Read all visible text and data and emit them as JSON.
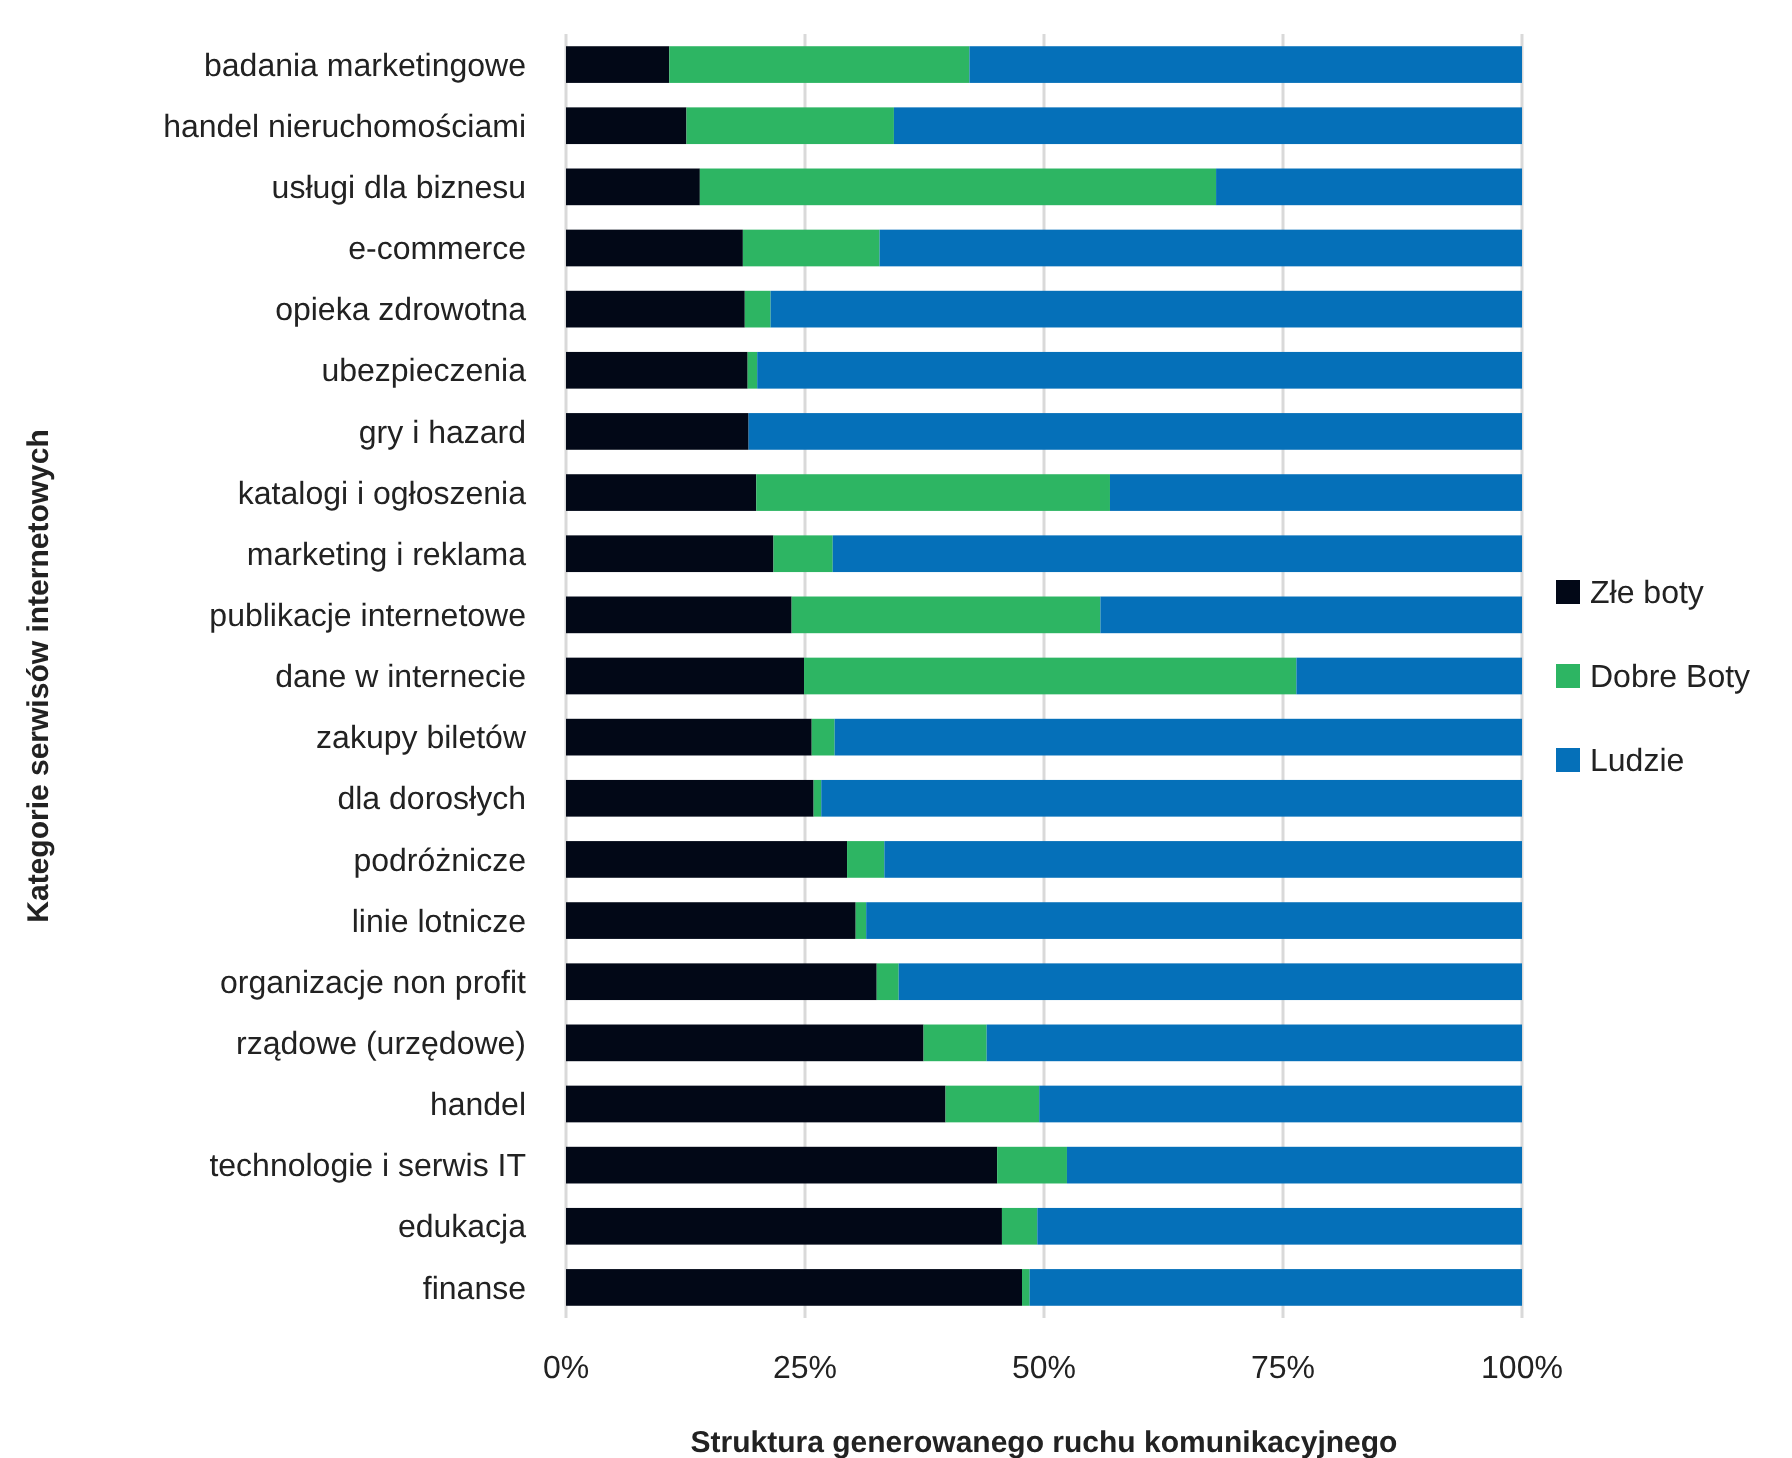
{
  "chart_data": {
    "type": "bar",
    "orientation": "horizontal",
    "stacked": true,
    "xlabel": "Struktura generowanego ruchu komunikacyjnego",
    "ylabel": "Kategorie serwisów internetowych",
    "categories": [
      "badania marketingowe",
      "handel nieruchomościami",
      "usługi dla biznesu",
      "e-commerce",
      "opieka zdrowotna",
      "ubezpieczenia",
      "gry i hazard",
      "katalogi i ogłoszenia",
      "marketing i reklama",
      "publikacje internetowe",
      "dane w internecie",
      "zakupy biletów",
      "dla dorosłych",
      "podróżnicze",
      "linie lotnicze",
      "organizacje non profit",
      "rządowe (urzędowe)",
      "handel",
      "technologie i serwis IT",
      "edukacja",
      "finanse"
    ],
    "series": [
      {
        "name": "Złe boty",
        "color": "#020817",
        "values": [
          10.8,
          12.6,
          14.0,
          18.5,
          18.7,
          19.0,
          19.1,
          19.9,
          21.7,
          23.6,
          24.9,
          25.7,
          25.9,
          29.4,
          30.3,
          32.5,
          37.4,
          39.7,
          45.1,
          45.6,
          47.7
        ]
      },
      {
        "name": "Dobre Boty",
        "color": "#2db563",
        "values": [
          31.4,
          21.7,
          54.0,
          14.3,
          2.7,
          1.0,
          0,
          37.0,
          6.2,
          32.3,
          51.5,
          2.4,
          0.8,
          3.9,
          1.1,
          2.3,
          6.6,
          9.8,
          7.3,
          3.7,
          0.8
        ]
      },
      {
        "name": "Ludzie",
        "color": "#0570b9",
        "values": [
          57.8,
          65.7,
          32.0,
          67.2,
          78.6,
          80.0,
          80.9,
          43.1,
          72.1,
          44.1,
          23.6,
          71.9,
          73.3,
          66.7,
          68.6,
          65.2,
          56.0,
          50.5,
          47.6,
          50.7,
          51.5
        ]
      }
    ],
    "xlim": [
      0,
      100
    ],
    "xticks": [
      {
        "value": 0,
        "label": "0%"
      },
      {
        "value": 25,
        "label": "25%"
      },
      {
        "value": 50,
        "label": "50%"
      },
      {
        "value": 75,
        "label": "75%"
      },
      {
        "value": 100,
        "label": "100%"
      }
    ],
    "grid": "x",
    "legend": "right"
  }
}
